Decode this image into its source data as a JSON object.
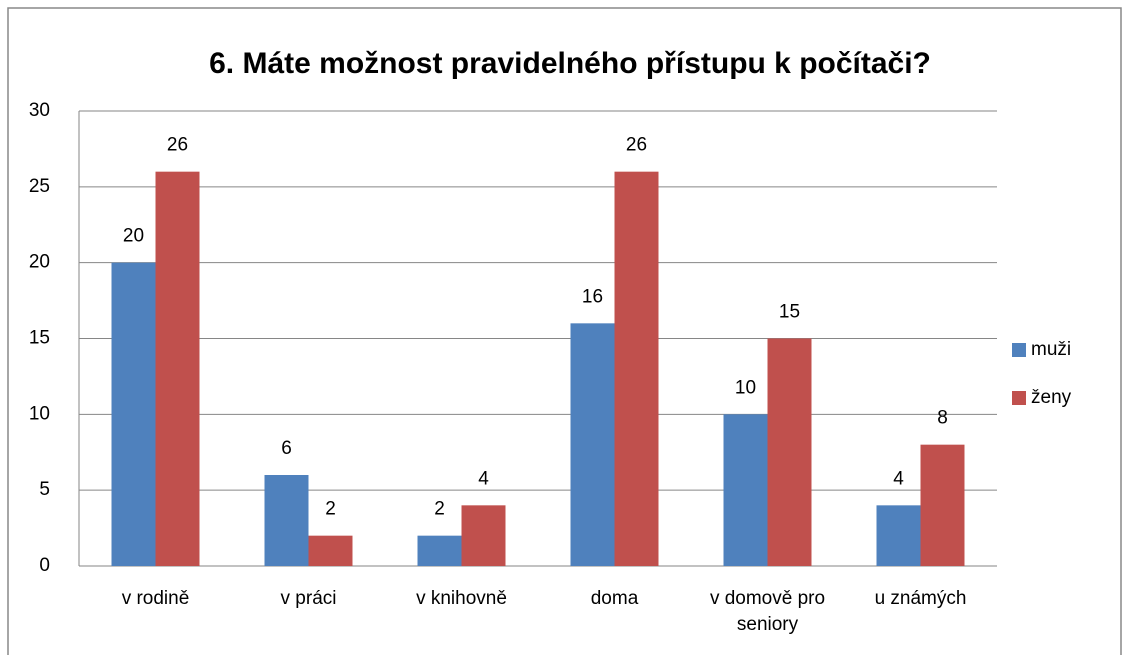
{
  "chart_data": {
    "type": "bar",
    "title": "6. Máte možnost pravidelného přístupu k počítači?",
    "categories": [
      "v rodině",
      "v práci",
      "v knihovně",
      "doma",
      "v domově pro seniory",
      "u známých"
    ],
    "series": [
      {
        "name": "muži",
        "color": "#4f81bd",
        "values": [
          20,
          6,
          2,
          16,
          10,
          4
        ]
      },
      {
        "name": "ženy",
        "color": "#c0504d",
        "values": [
          26,
          2,
          4,
          26,
          15,
          8
        ]
      }
    ],
    "ylim": [
      0,
      30
    ],
    "yticks": [
      0,
      5,
      10,
      15,
      20,
      25,
      30
    ],
    "grid": true,
    "legend": "right"
  }
}
